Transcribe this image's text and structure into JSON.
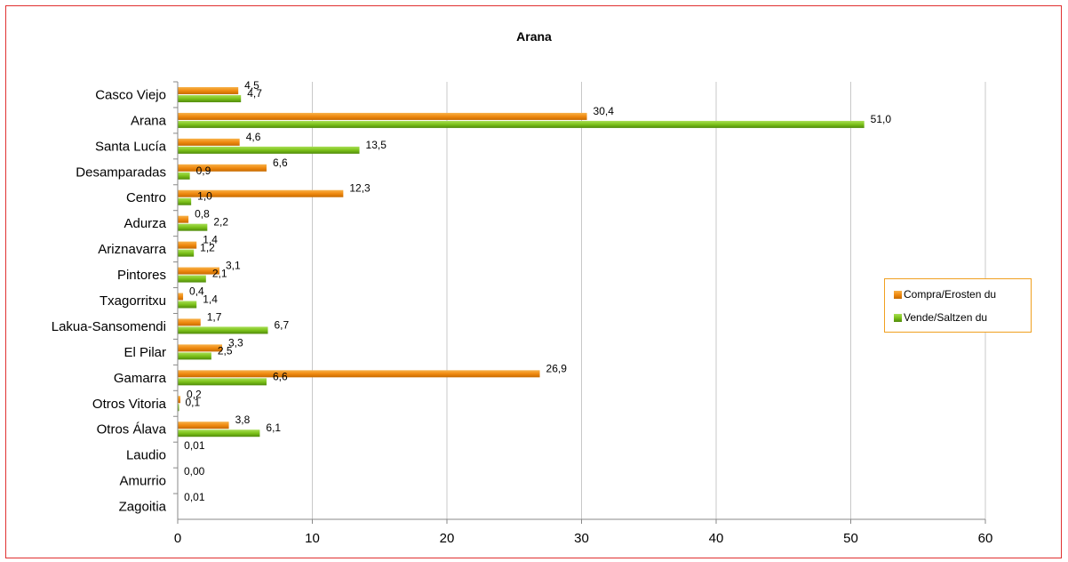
{
  "chart_data": {
    "type": "bar",
    "orientation": "horizontal",
    "title": "Arana",
    "xlabel": "",
    "ylabel": "",
    "xlim": [
      0,
      60
    ],
    "xticks": [
      0,
      10,
      20,
      30,
      40,
      50,
      60
    ],
    "grid": true,
    "legend_position": "right",
    "categories": [
      "Casco Viejo",
      "Arana",
      "Santa Lucía",
      "Desamparadas",
      "Centro",
      "Adurza",
      "Ariznavarra",
      "Pintores",
      "Txagorritxu",
      "Lakua-Sansomendi",
      "El Pilar",
      "Gamarra",
      "Otros Vitoria",
      "Otros Álava",
      "Laudio",
      "Amurrio",
      "Zagoitia"
    ],
    "series": [
      {
        "name": "Compra/Erosten du",
        "color": "#f08a10",
        "values": [
          4.5,
          30.4,
          4.6,
          6.6,
          12.3,
          0.8,
          1.4,
          3.1,
          0.4,
          1.7,
          3.3,
          26.9,
          0.2,
          3.8,
          0.01,
          0.0,
          0.01
        ],
        "labels": [
          "4,5",
          "30,4",
          "4,6",
          "6,6",
          "12,3",
          "0,8",
          "1,4",
          "3,1",
          "0,4",
          "1,7",
          "3,3",
          "26,9",
          "0,2",
          "3,8",
          "0,01",
          "0,00",
          "0,01"
        ]
      },
      {
        "name": "Vende/Saltzen du",
        "color": "#7cc21a",
        "values": [
          4.7,
          51.0,
          13.5,
          0.9,
          1.0,
          2.2,
          1.2,
          2.1,
          1.4,
          6.7,
          2.5,
          6.6,
          0.1,
          6.1,
          null,
          null,
          null
        ],
        "labels": [
          "4,7",
          "51,0",
          "13,5",
          "0,9",
          "1,0",
          "2,2",
          "1,2",
          "2,1",
          "1,4",
          "6,7",
          "2,5",
          "6,6",
          "0,1",
          "6,1",
          null,
          null,
          null
        ]
      }
    ]
  }
}
